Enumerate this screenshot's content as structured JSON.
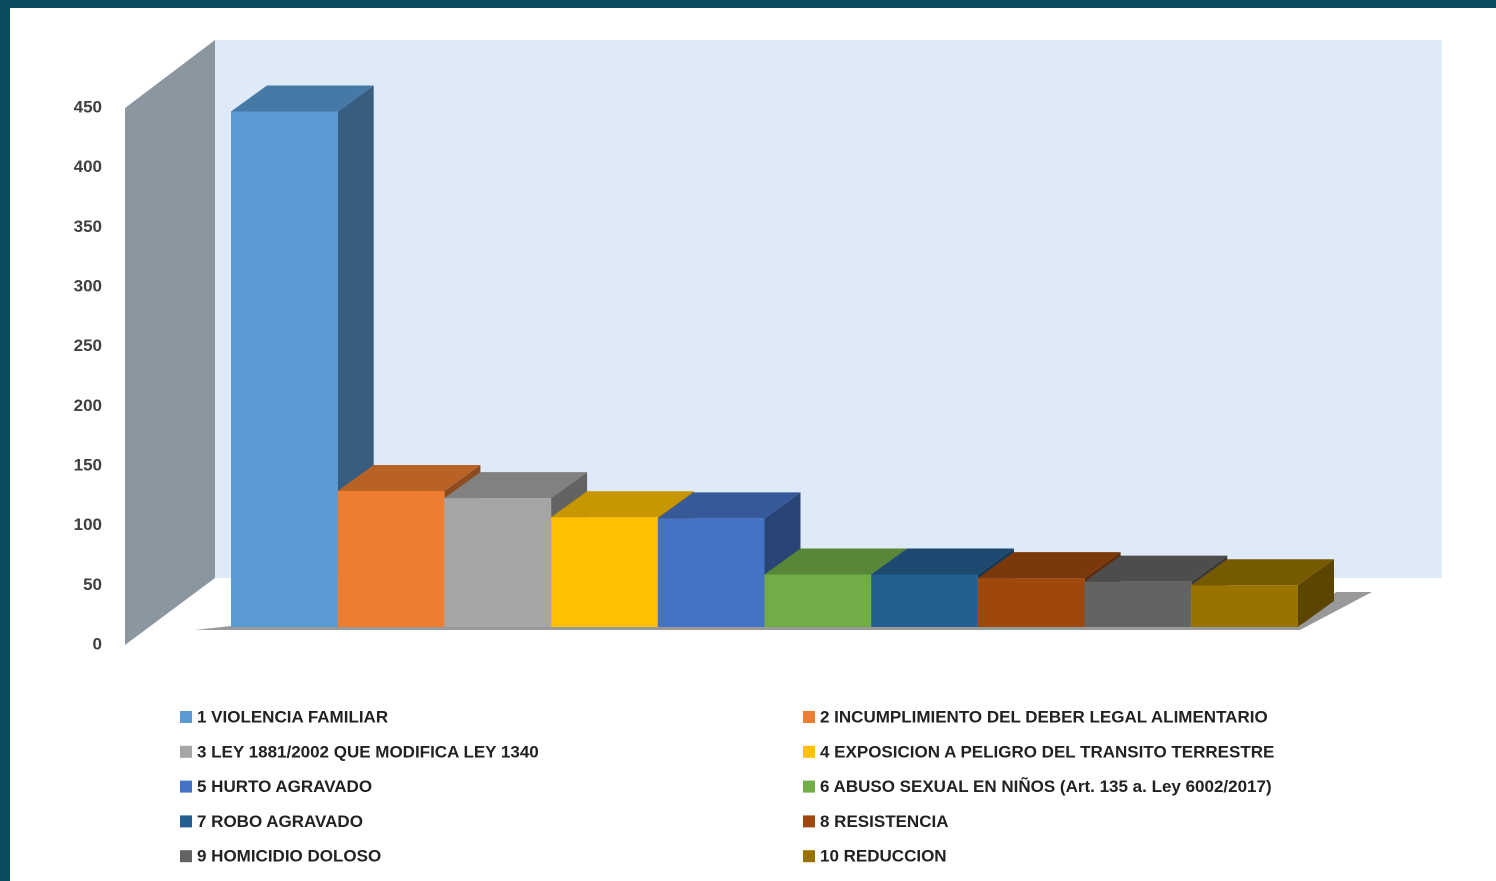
{
  "chart_data": {
    "type": "bar3d",
    "categories": [
      "1 VIOLENCIA FAMILIAR",
      "2 INCUMPLIMIENTO DEL DEBER LEGAL ALIMENTARIO",
      "3 LEY 1881/2002 QUE MODIFICA LEY 1340",
      "4 EXPOSICION A PELIGRO DEL TRANSITO TERRESTRE",
      "5 HURTO AGRAVADO",
      "6 ABUSO SEXUAL EN NIÑOS (Art. 135 a. Ley 6002/2017)",
      "7 ROBO AGRAVADO",
      "8 RESISTENCIA",
      "9 HOMICIDIO DOLOSO",
      "10 REDUCCION"
    ],
    "values": [
      432,
      114,
      108,
      92,
      91,
      44,
      44,
      41,
      38,
      35
    ],
    "colors": [
      "#5b9bd5",
      "#ed7d31",
      "#a5a5a5",
      "#ffc000",
      "#4472c4",
      "#70ad47",
      "#255e91",
      "#9e480e",
      "#636363",
      "#997300"
    ],
    "ylim": [
      0,
      450
    ],
    "yticks": [
      0,
      50,
      100,
      150,
      200,
      250,
      300,
      350,
      400,
      450
    ]
  }
}
